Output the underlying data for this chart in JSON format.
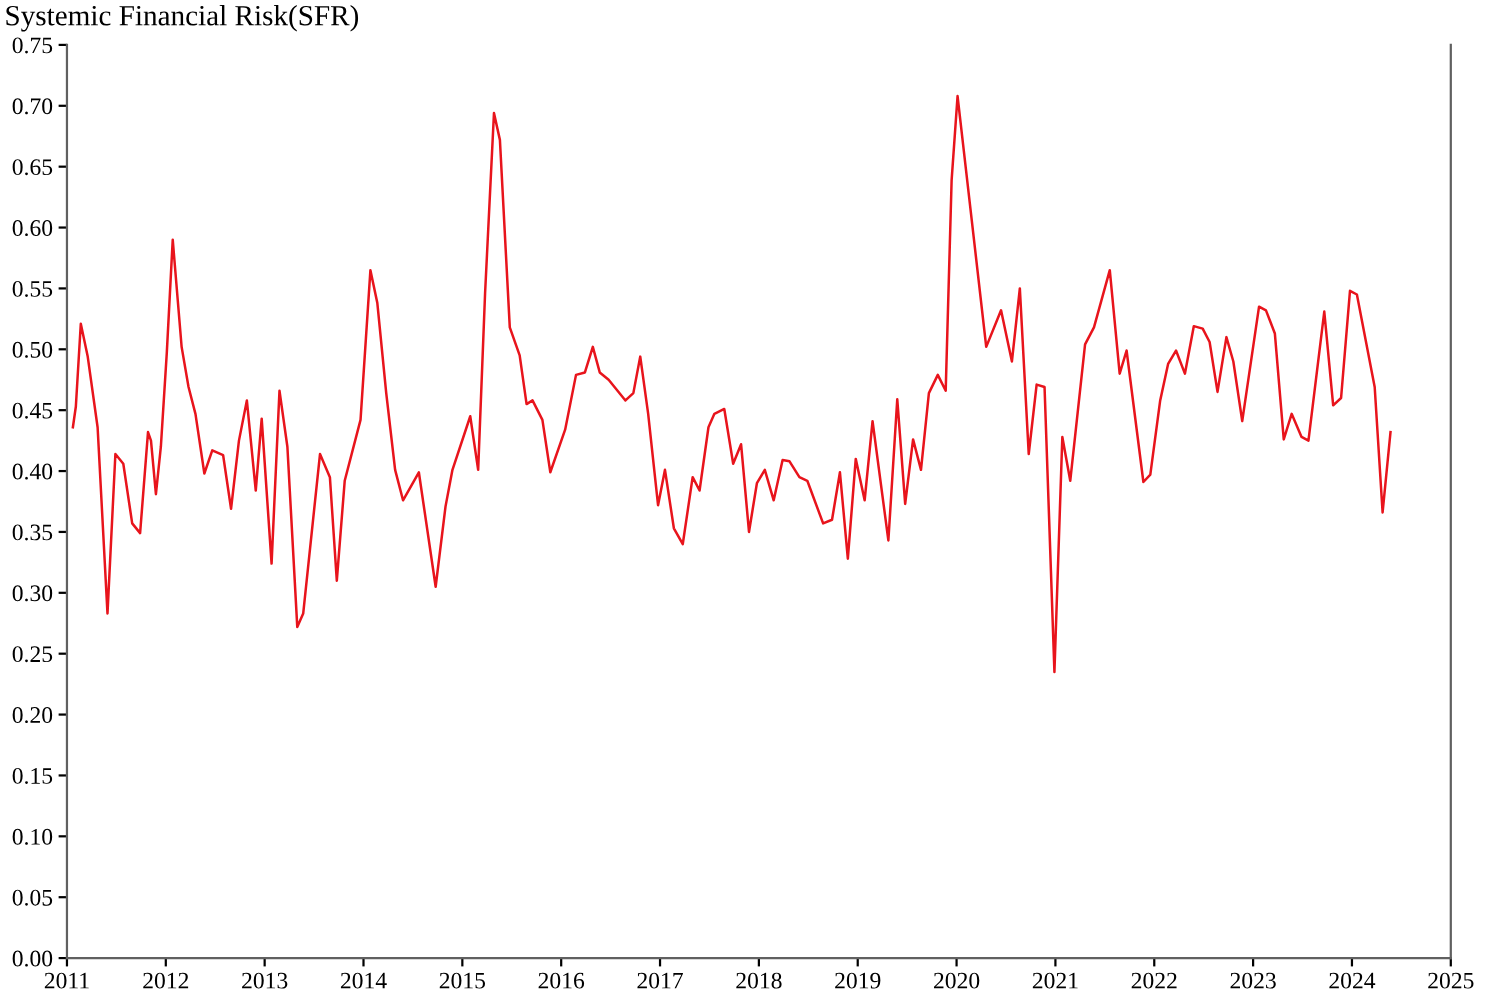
{
  "chart_data": {
    "type": "line",
    "title": "Systemic Financial Risk(SFR)",
    "xlim": [
      2011,
      2025
    ],
    "xticks": [
      2011,
      2012,
      2013,
      2014,
      2015,
      2016,
      2017,
      2018,
      2019,
      2020,
      2021,
      2022,
      2023,
      2024,
      2025
    ],
    "ylim": [
      0,
      0.75
    ],
    "yticks": [
      {
        "value": 0,
        "label": "0.00"
      },
      {
        "value": 0.05,
        "label": "0.05"
      },
      {
        "value": 0.1,
        "label": "0.10"
      },
      {
        "value": 0.15,
        "label": "0.15"
      },
      {
        "value": 0.2,
        "label": "0.20"
      },
      {
        "value": 0.25,
        "label": "0.25"
      },
      {
        "value": 0.3,
        "label": "0.30"
      },
      {
        "value": 0.35,
        "label": "0.35"
      },
      {
        "value": 0.4,
        "label": "0.40"
      },
      {
        "value": 0.45,
        "label": "0.45"
      },
      {
        "value": 0.5,
        "label": "0.50"
      },
      {
        "value": 0.55,
        "label": "0.55"
      },
      {
        "value": 0.6,
        "label": "0.60"
      },
      {
        "value": 0.65,
        "label": "0.65"
      },
      {
        "value": 0.7,
        "label": "0.70"
      },
      {
        "value": 0.75,
        "label": "0.75"
      }
    ],
    "grid": false,
    "legend": false,
    "marker": "none",
    "line_style": "solid",
    "series": [
      {
        "color": "#e8141c",
        "x": [
          2011.06,
          2011.09,
          2011.14,
          2011.21,
          2011.31,
          2011.41,
          2011.49,
          2011.57,
          2011.66,
          2011.74,
          2011.82,
          2011.85,
          2011.9,
          2011.95,
          2012.01,
          2012.07,
          2012.16,
          2012.23,
          2012.3,
          2012.39,
          2012.47,
          2012.58,
          2012.66,
          2012.74,
          2012.82,
          2012.91,
          2012.97,
          2013.07,
          2013.15,
          2013.23,
          2013.33,
          2013.39,
          2013.56,
          2013.66,
          2013.73,
          2013.81,
          2013.97,
          2014.07,
          2014.14,
          2014.23,
          2014.32,
          2014.4,
          2014.56,
          2014.73,
          2014.83,
          2014.9,
          2015.08,
          2015.16,
          2015.23,
          2015.32,
          2015.38,
          2015.48,
          2015.58,
          2015.65,
          2015.71,
          2015.81,
          2015.89,
          2016.04,
          2016.15,
          2016.24,
          2016.32,
          2016.39,
          2016.48,
          2016.65,
          2016.73,
          2016.8,
          2016.88,
          2016.98,
          2017.05,
          2017.14,
          2017.23,
          2017.33,
          2017.4,
          2017.49,
          2017.55,
          2017.65,
          2017.74,
          2017.82,
          2017.9,
          2017.98,
          2018.06,
          2018.15,
          2018.24,
          2018.31,
          2018.41,
          2018.49,
          2018.65,
          2018.74,
          2018.82,
          2018.9,
          2018.98,
          2019.07,
          2019.15,
          2019.31,
          2019.4,
          2019.48,
          2019.56,
          2019.64,
          2019.72,
          2019.81,
          2019.89,
          2019.95,
          2020.01,
          2020.3,
          2020.45,
          2020.56,
          2020.64,
          2020.73,
          2020.81,
          2020.89,
          2020.99,
          2021.07,
          2021.15,
          2021.3,
          2021.39,
          2021.55,
          2021.65,
          2021.72,
          2021.89,
          2021.96,
          2022.06,
          2022.14,
          2022.22,
          2022.31,
          2022.4,
          2022.49,
          2022.56,
          2022.64,
          2022.73,
          2022.8,
          2022.89,
          2023.06,
          2023.13,
          2023.22,
          2023.31,
          2023.39,
          2023.49,
          2023.56,
          2023.72,
          2023.81,
          2023.89,
          2023.98,
          2024.05,
          2024.23,
          2024.31,
          2024.39
        ],
        "values": [
          0.436,
          0.453,
          0.521,
          0.494,
          0.436,
          0.283,
          0.414,
          0.406,
          0.357,
          0.349,
          0.432,
          0.425,
          0.381,
          0.42,
          0.497,
          0.59,
          0.502,
          0.469,
          0.447,
          0.398,
          0.417,
          0.413,
          0.369,
          0.425,
          0.458,
          0.384,
          0.443,
          0.324,
          0.466,
          0.42,
          0.272,
          0.283,
          0.414,
          0.395,
          0.31,
          0.392,
          0.442,
          0.565,
          0.538,
          0.464,
          0.401,
          0.376,
          0.399,
          0.305,
          0.371,
          0.401,
          0.445,
          0.401,
          0.546,
          0.694,
          0.672,
          0.518,
          0.495,
          0.455,
          0.458,
          0.442,
          0.399,
          0.434,
          0.479,
          0.481,
          0.502,
          0.481,
          0.475,
          0.458,
          0.464,
          0.494,
          0.447,
          0.372,
          0.401,
          0.353,
          0.34,
          0.395,
          0.384,
          0.436,
          0.447,
          0.451,
          0.406,
          0.422,
          0.35,
          0.39,
          0.401,
          0.376,
          0.409,
          0.408,
          0.395,
          0.392,
          0.357,
          0.36,
          0.399,
          0.328,
          0.41,
          0.376,
          0.441,
          0.343,
          0.459,
          0.373,
          0.426,
          0.401,
          0.464,
          0.479,
          0.466,
          0.639,
          0.708,
          0.502,
          0.532,
          0.49,
          0.55,
          0.414,
          0.471,
          0.469,
          0.235,
          0.428,
          0.392,
          0.504,
          0.518,
          0.565,
          0.48,
          0.499,
          0.391,
          0.397,
          0.458,
          0.488,
          0.499,
          0.48,
          0.519,
          0.517,
          0.506,
          0.465,
          0.51,
          0.49,
          0.441,
          0.535,
          0.532,
          0.513,
          0.426,
          0.447,
          0.428,
          0.425,
          0.531,
          0.454,
          0.46,
          0.548,
          0.545,
          0.469,
          0.366,
          0.432
        ]
      }
    ]
  }
}
